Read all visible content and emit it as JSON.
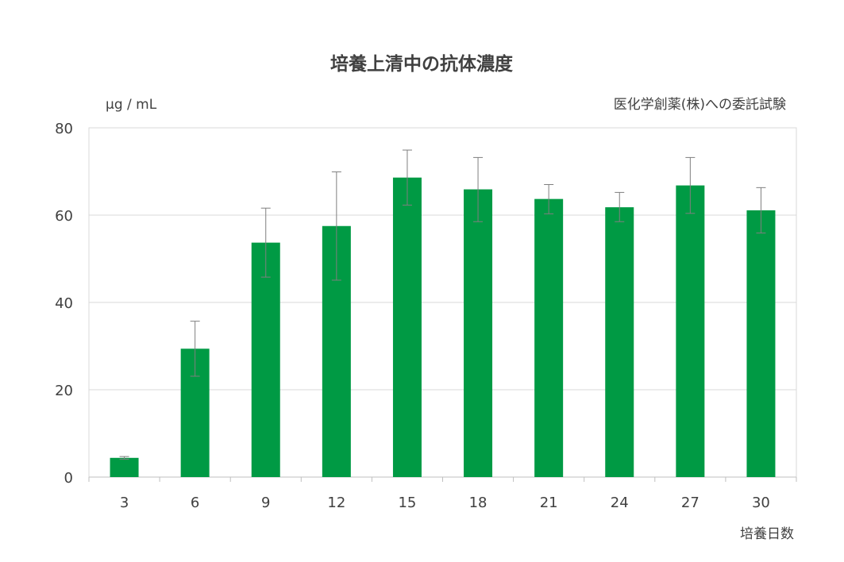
{
  "chart_data": {
    "type": "bar",
    "title": "培養上清中の抗体濃度",
    "ylabel": "μg / mL",
    "xlabel": "培養日数",
    "annotation": "医化学創薬(株)への委託試験",
    "categories": [
      "3",
      "6",
      "9",
      "12",
      "15",
      "18",
      "21",
      "24",
      "27",
      "30"
    ],
    "values": [
      4.4,
      29.4,
      53.7,
      57.5,
      68.6,
      65.9,
      63.7,
      61.8,
      66.8,
      61.1
    ],
    "error_upper": [
      4.7,
      35.7,
      61.6,
      69.9,
      74.9,
      73.2,
      67.0,
      65.2,
      73.2,
      66.3
    ],
    "error_lower": [
      4.1,
      23.1,
      45.8,
      45.1,
      62.3,
      58.5,
      60.3,
      58.5,
      60.4,
      55.9
    ],
    "y_ticks": [
      "0",
      "20",
      "40",
      "60",
      "80"
    ],
    "ylim": [
      0,
      80
    ],
    "grid": true,
    "legend": "none",
    "bar_color": "#009a44"
  }
}
